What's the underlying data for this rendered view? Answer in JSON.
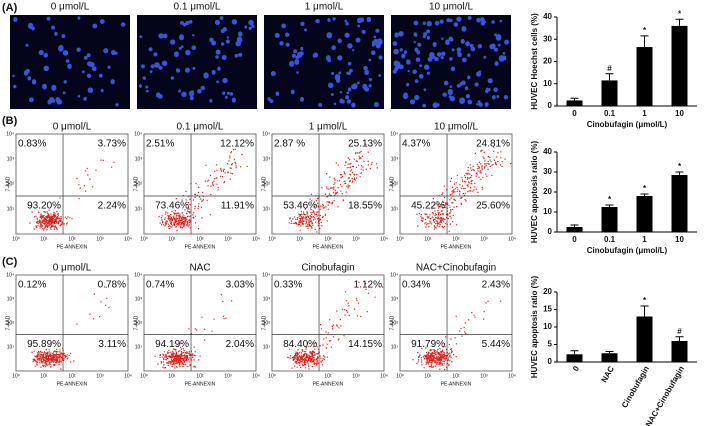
{
  "panel_labels": [
    "(A)",
    "(B)",
    "(C)"
  ],
  "microscopy_titles": [
    "0 μmol/L",
    "0.1 μmol/L",
    "1 μmol/L",
    "10 μmol/L"
  ],
  "flow_rows": [
    {
      "titles": [
        "0 μmol/L",
        "0.1 μmol/L",
        "1 μmol/L",
        "10 μmol/L"
      ],
      "plots": [
        [
          "0.83%",
          "3.73%",
          "93.20%",
          "2.24%"
        ],
        [
          "2.51%",
          "12.12%",
          "73.46%",
          "11.91%"
        ],
        [
          "2.87 %",
          "25.13%",
          "53.46%",
          "18.55%"
        ],
        [
          "4.37%",
          "24.81%",
          "45.22%",
          "25.60%"
        ]
      ]
    },
    {
      "titles": [
        "0 μmol/L",
        "NAC",
        "Cinobufagin",
        "NAC+Cinobufagin"
      ],
      "plots": [
        [
          "0.12%",
          "0.78%",
          "95.89%",
          "3.11%"
        ],
        [
          "0.74%",
          "3.03%",
          "94.19%",
          "2.04%"
        ],
        [
          "0.33%",
          "1.12%",
          "84.40%",
          "14.15%"
        ],
        [
          "0.34%",
          "2.43%",
          "91.79%",
          "5.44%"
        ]
      ]
    }
  ],
  "flow_axis": {
    "y_label": "7-AAD",
    "x_label": "PE-ANNEXIN",
    "ticks": [
      "10⁰",
      "10¹",
      "10²",
      "10³",
      "10⁴"
    ]
  },
  "chart_data": [
    {
      "type": "bar",
      "y_label": "HUVEC Hoechst cells (%)",
      "x_label": "Cinobufagin (μmol/L)",
      "categories": [
        "0",
        "0.1",
        "1",
        "10"
      ],
      "values": [
        2.5,
        11.5,
        26.5,
        36
      ],
      "errors": [
        1,
        3,
        5,
        3
      ],
      "bar_labels": [
        null,
        "#",
        "*",
        "*"
      ],
      "color": "#000000",
      "ylim": [
        0,
        40
      ],
      "yticks": [
        0,
        10,
        20,
        30,
        40
      ]
    },
    {
      "type": "bar",
      "y_label": "HUVEC apoptosis ratio (%)",
      "x_label": "Cinobufagin (μmol/L)",
      "categories": [
        "0",
        "0.1",
        "1",
        "10"
      ],
      "values": [
        2.5,
        12.5,
        18,
        28.5
      ],
      "errors": [
        1,
        1,
        1,
        1.5
      ],
      "bar_labels": [
        null,
        "*",
        "*",
        "*"
      ],
      "color": "#000000",
      "ylim": [
        0,
        40
      ],
      "yticks": [
        0,
        10,
        20,
        30,
        40
      ]
    },
    {
      "type": "bar",
      "y_label": "HUVEC apoptosis ratio (%)",
      "categories": [
        "0",
        "NAC",
        "Cinobufagin",
        "NAC+Cinobufagin"
      ],
      "values": [
        2.2,
        2.5,
        13,
        6
      ],
      "errors": [
        1,
        0.5,
        3,
        1.2
      ],
      "bar_labels": [
        null,
        null,
        "*",
        "#"
      ],
      "color": "#000000",
      "ylim": [
        0,
        20
      ],
      "yticks": [
        0,
        5,
        10,
        15,
        20
      ]
    }
  ]
}
